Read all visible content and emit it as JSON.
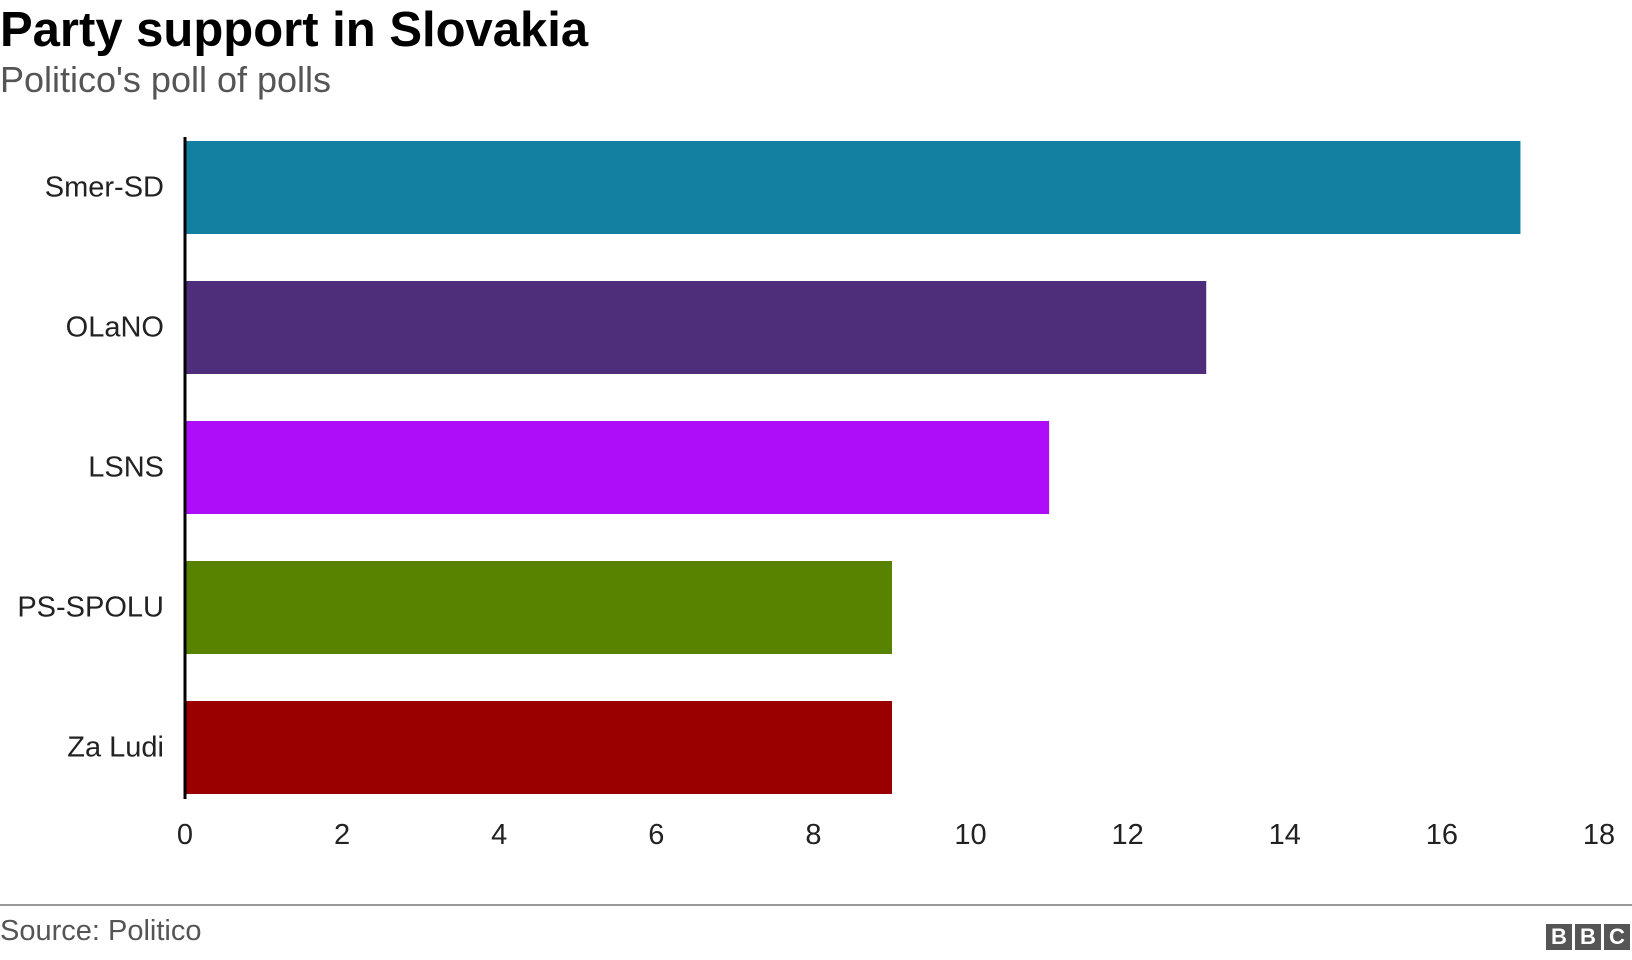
{
  "title": "Party support in Slovakia",
  "subtitle": "Politico's poll of polls",
  "source": "Source: Politico",
  "logo": {
    "letters": [
      "B",
      "B",
      "C"
    ]
  },
  "chart_data": {
    "type": "bar",
    "orientation": "horizontal",
    "title": "Party support in Slovakia",
    "subtitle": "Politico's poll of polls",
    "xlabel": "",
    "ylabel": "",
    "categories": [
      "Smer-SD",
      "OLaNO",
      "LSNS",
      "PS-SPOLU",
      "Za Ludi"
    ],
    "values": [
      17,
      13,
      11,
      9,
      9
    ],
    "colors": [
      "#1380A1",
      "#4E2D7A",
      "#AE0DF9",
      "#588300",
      "#990000"
    ],
    "xlim": [
      0,
      18
    ],
    "ticks": [
      0,
      2,
      4,
      6,
      8,
      10,
      12,
      14,
      16,
      18
    ],
    "grid": false,
    "legend": "none"
  }
}
